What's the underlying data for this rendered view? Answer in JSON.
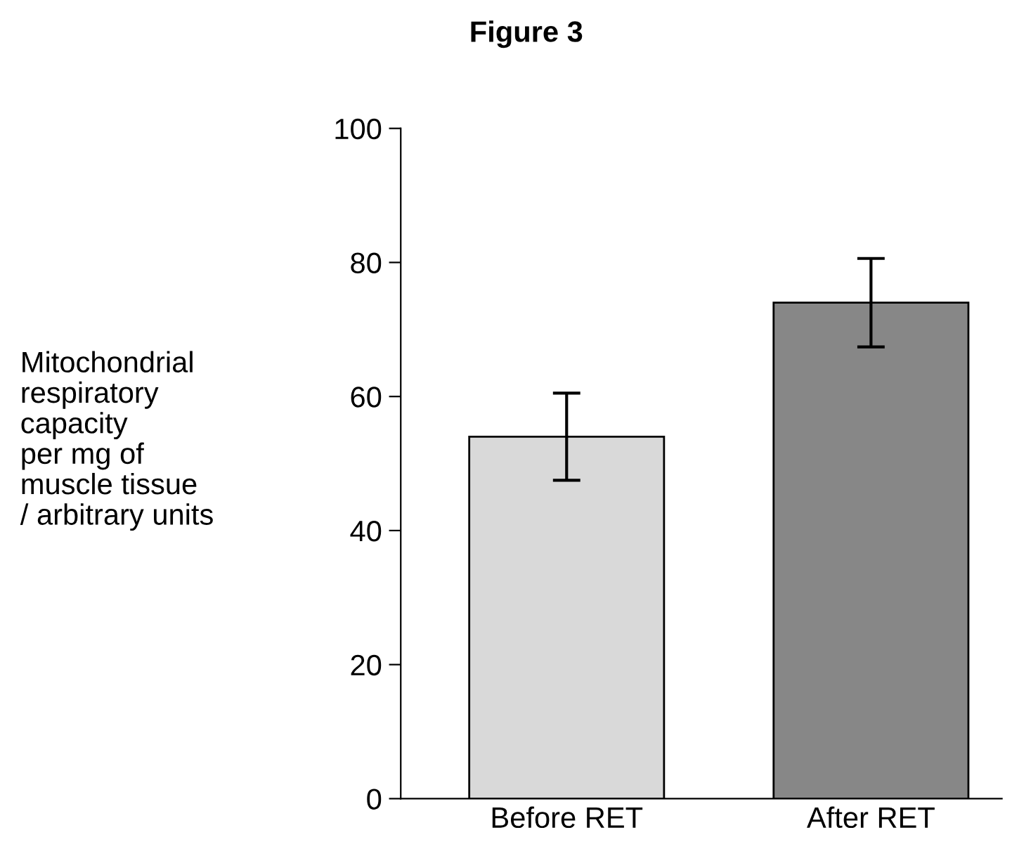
{
  "chart_data": {
    "type": "bar",
    "title": "Figure 3",
    "ylabel": "Mitochondrial\nrespiratory\ncapacity\nper mg of\nmuscle tissue\n/ arbitrary units",
    "categories": [
      "Before RET",
      "After RET"
    ],
    "values": [
      54,
      74
    ],
    "errors": [
      6.5,
      6.6
    ],
    "colors": [
      "#d9d9d9",
      "#878787"
    ],
    "ylim": [
      0,
      100
    ],
    "yticks": [
      0,
      20,
      40,
      60,
      80,
      100
    ],
    "grid": false,
    "legend": false
  }
}
